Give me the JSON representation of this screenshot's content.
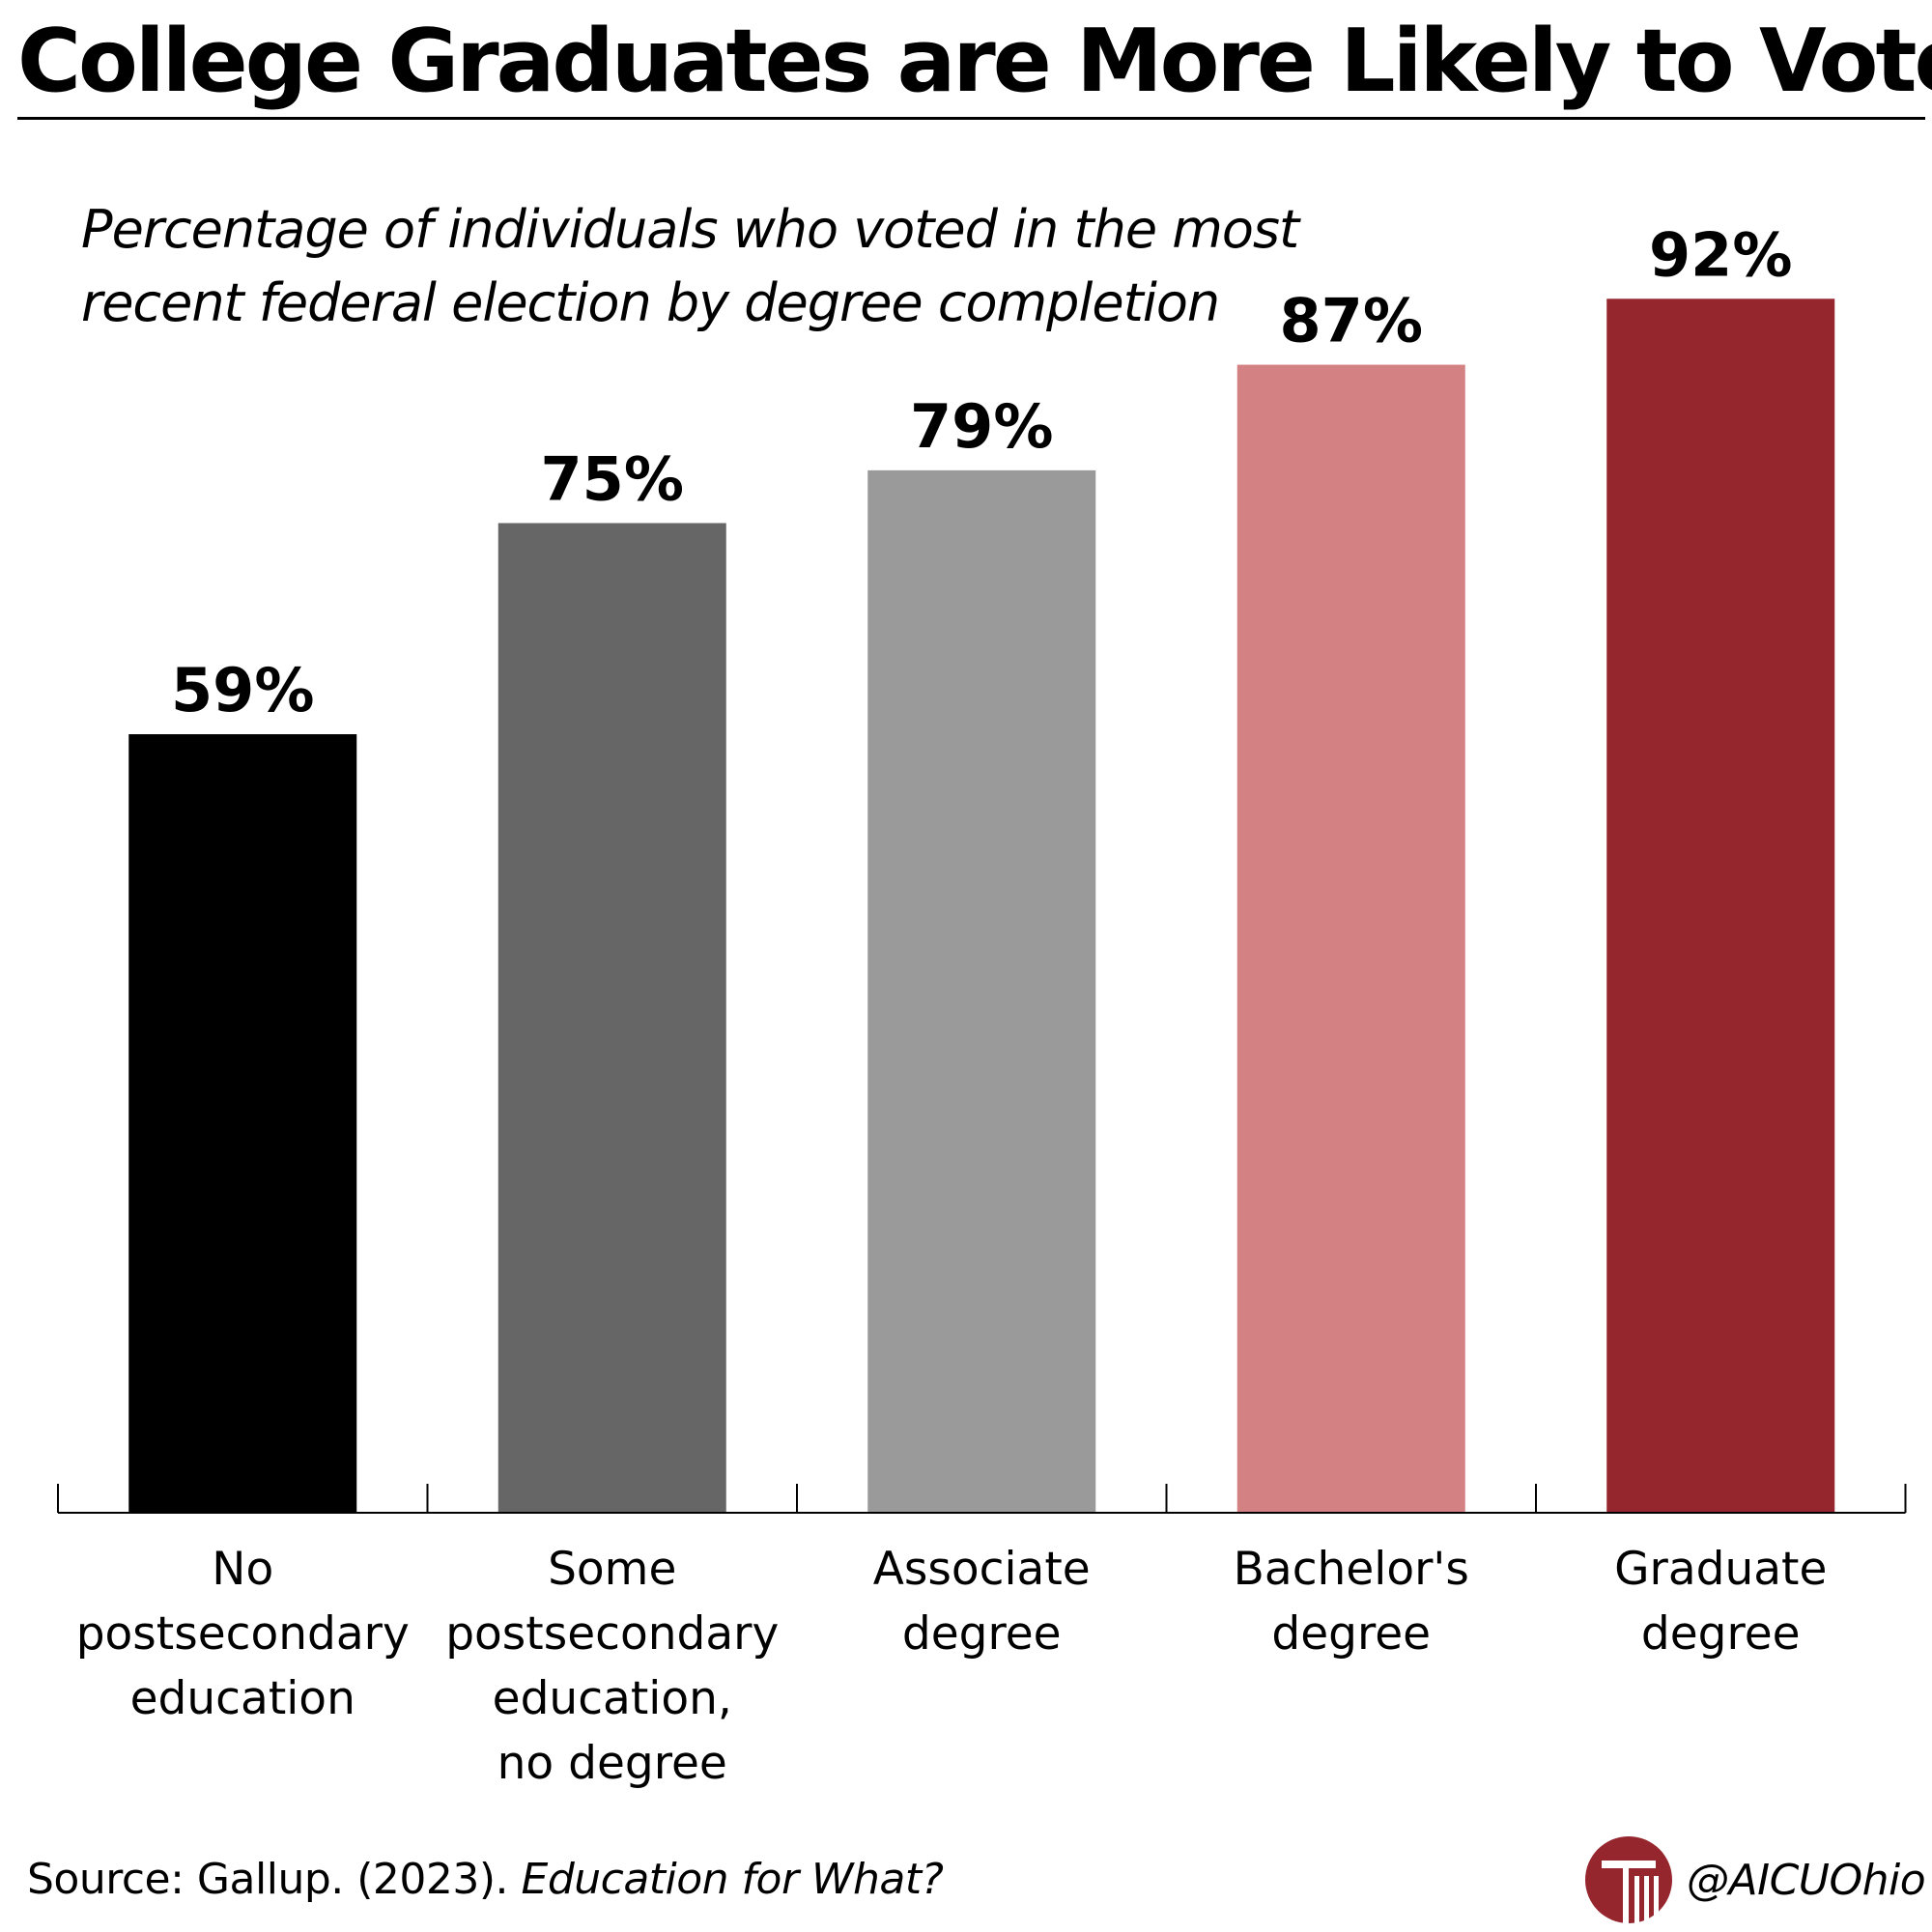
{
  "title": "College Graduates are More Likely to Vote",
  "subtitle": "Percentage of individuals who voted in the most recent federal election by degree completion",
  "colors": {
    "brand": "#96262d"
  },
  "chart_data": {
    "type": "bar",
    "title": "College Graduates are More Likely to Vote",
    "subtitle": "Percentage of individuals who voted in the most recent federal election by degree completion",
    "xlabel": "",
    "ylabel": "",
    "ylim": [
      0,
      100
    ],
    "grid": false,
    "categories": [
      "No\npostsecondary\neducation",
      "Some\npostsecondary\neducation,\nno degree",
      "Associate\ndegree",
      "Bachelor's\ndegree",
      "Graduate\ndegree"
    ],
    "values": [
      59,
      75,
      79,
      87,
      92
    ],
    "value_labels": [
      "59%",
      "75%",
      "79%",
      "87%",
      "92%"
    ],
    "bar_colors": [
      "#000000",
      "#666666",
      "#9a9a9a",
      "#d38183",
      "#96262d"
    ]
  },
  "footer": {
    "source_prefix": "Source: Gallup. (2023). ",
    "source_title": "Education for What?",
    "handle": "@AICUOhio",
    "logo_icon": "aicu-column-logo-icon"
  }
}
